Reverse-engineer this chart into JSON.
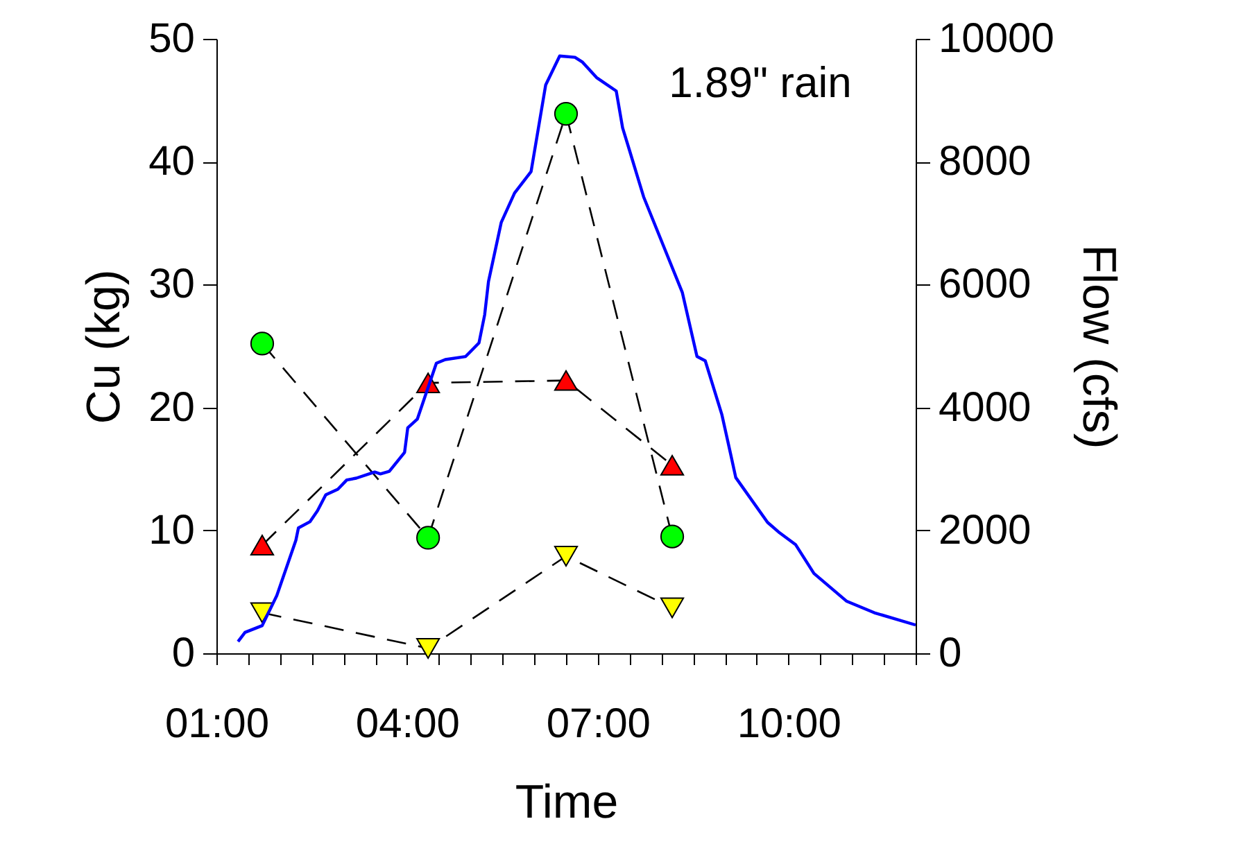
{
  "chart_data": {
    "type": "line",
    "xlabel": "Time",
    "ylabel": "Cu (kg)",
    "y2label": "Flow (cfs)",
    "annotations": [
      "1.89\" rain"
    ],
    "xlim": [
      1,
      12
    ],
    "xticks": [
      {
        "value": 1,
        "label": "01:00"
      },
      {
        "value": 1.5,
        "label": null
      },
      {
        "value": 2,
        "label": null
      },
      {
        "value": 2.5,
        "label": null
      },
      {
        "value": 3,
        "label": null
      },
      {
        "value": 3.5,
        "label": null
      },
      {
        "value": 4,
        "label": "04:00"
      },
      {
        "value": 4.5,
        "label": null
      },
      {
        "value": 5,
        "label": null
      },
      {
        "value": 5.5,
        "label": null
      },
      {
        "value": 6,
        "label": null
      },
      {
        "value": 6.5,
        "label": null
      },
      {
        "value": 7,
        "label": "07:00"
      },
      {
        "value": 7.5,
        "label": null
      },
      {
        "value": 8,
        "label": null
      },
      {
        "value": 8.5,
        "label": null
      },
      {
        "value": 9,
        "label": null
      },
      {
        "value": 9.5,
        "label": null
      },
      {
        "value": 10,
        "label": "10:00"
      },
      {
        "value": 10.5,
        "label": null
      },
      {
        "value": 11,
        "label": null
      },
      {
        "value": 11.5,
        "label": null
      },
      {
        "value": 12,
        "label": null
      }
    ],
    "ylim": [
      0,
      50
    ],
    "yticks": [
      0,
      10,
      20,
      30,
      40,
      50
    ],
    "y2lim": [
      0,
      10000
    ],
    "y2ticks": [
      0,
      2000,
      4000,
      6000,
      8000,
      10000
    ],
    "grid": false,
    "series": [
      {
        "color": "#00ff00",
        "marker": "circle",
        "line_style": "dashed",
        "x": [
          1.72,
          4.33,
          6.5,
          8.17
        ],
        "values": [
          25.2,
          9.4,
          43.9,
          9.5
        ]
      },
      {
        "color": "#ff0000",
        "marker": "triangle",
        "line_style": "dashed",
        "x": [
          1.72,
          4.33,
          6.5,
          8.17
        ],
        "values": [
          8.8,
          22.0,
          22.2,
          15.3
        ]
      },
      {
        "color": "#ffff00",
        "marker": "triangle-down",
        "line_style": "dashed",
        "x": [
          1.72,
          4.33,
          6.5,
          8.17
        ],
        "values": [
          3.3,
          0.4,
          7.9,
          3.7
        ]
      },
      {
        "color": "#0000ff",
        "marker": "none",
        "line_style": "solid",
        "axis": "y2",
        "x": [
          1.34,
          1.45,
          1.72,
          1.95,
          2.25,
          2.29,
          2.47,
          2.59,
          2.72,
          2.91,
          3.05,
          3.2,
          3.49,
          3.58,
          3.72,
          3.96,
          4.01,
          4.16,
          4.46,
          4.6,
          4.92,
          5.13,
          5.22,
          5.28,
          5.48,
          5.69,
          5.95,
          6.18,
          6.4,
          6.64,
          6.76,
          6.98,
          7.29,
          7.39,
          7.5,
          7.72,
          8.33,
          8.56,
          8.69,
          8.95,
          9.09,
          9.17,
          9.67,
          9.86,
          10.11,
          10.4,
          10.91,
          11.35,
          12.0
        ],
        "values": [
          190,
          340,
          450,
          940,
          1840,
          2040,
          2140,
          2320,
          2580,
          2670,
          2820,
          2850,
          2950,
          2920,
          2960,
          3270,
          3670,
          3810,
          4720,
          4780,
          4830,
          5050,
          5510,
          6050,
          7010,
          7490,
          7840,
          9250,
          9720,
          9700,
          9620,
          9370,
          9150,
          8550,
          8180,
          7430,
          5870,
          4830,
          4760,
          3890,
          3240,
          2860,
          2130,
          1960,
          1770,
          1300,
          850,
          660,
          460
        ]
      }
    ]
  }
}
